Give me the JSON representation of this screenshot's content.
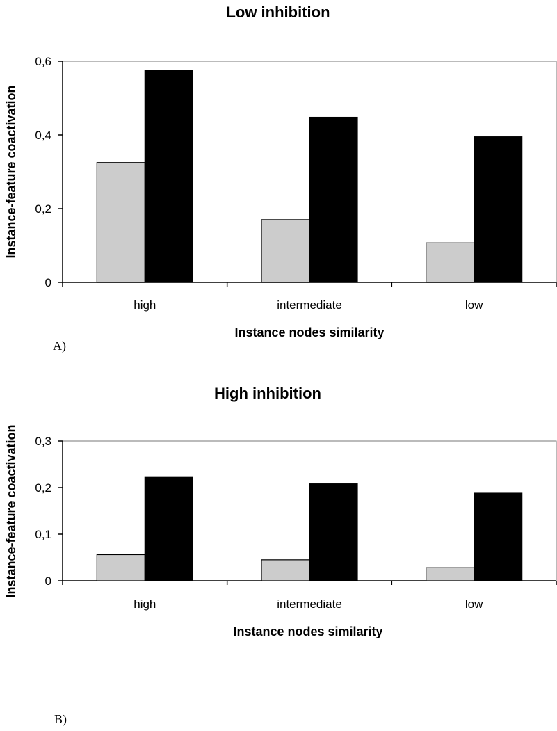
{
  "chart_data": [
    {
      "type": "bar",
      "title": "Low inhibition",
      "xlabel": "Instance nodes similarity",
      "ylabel": "Instance-feature coactivation",
      "panel_label": "A)",
      "categories": [
        "high",
        "intermediate",
        "low"
      ],
      "ylim": [
        0,
        0.6
      ],
      "yticks": [
        0,
        0.2,
        0.4,
        0.6
      ],
      "ytick_labels": [
        "0",
        "0,2",
        "0,4",
        "0,6"
      ],
      "grid": false,
      "legend": "none",
      "series": [
        {
          "color": "#cccccc",
          "values": [
            0.325,
            0.17,
            0.107
          ]
        },
        {
          "color": "#000000",
          "values": [
            0.575,
            0.448,
            0.395
          ]
        }
      ]
    },
    {
      "type": "bar",
      "title": "High inhibition",
      "xlabel": "Instance nodes similarity",
      "ylabel": "Instance-feature coactivation",
      "panel_label": "B)",
      "categories": [
        "high",
        "intermediate",
        "low"
      ],
      "ylim": [
        0,
        0.3
      ],
      "yticks": [
        0,
        0.1,
        0.2,
        0.3
      ],
      "ytick_labels": [
        "0",
        "0,1",
        "0,2",
        "0,3"
      ],
      "grid": false,
      "legend": "none",
      "series": [
        {
          "color": "#cccccc",
          "values": [
            0.056,
            0.045,
            0.028
          ]
        },
        {
          "color": "#000000",
          "values": [
            0.222,
            0.208,
            0.188
          ]
        }
      ]
    }
  ]
}
